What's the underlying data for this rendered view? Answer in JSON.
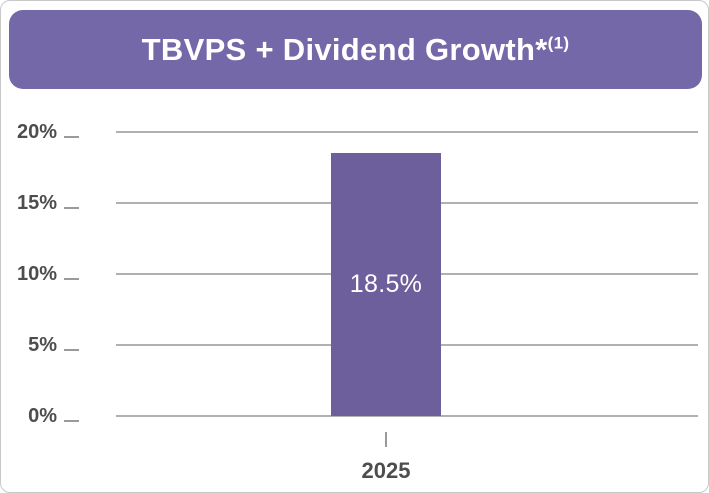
{
  "header": {
    "title": "TBVPS + Dividend Growth*",
    "footnote": "(1)"
  },
  "chart_data": {
    "type": "bar",
    "title": "TBVPS + Dividend Growth*(1)",
    "categories": [
      "2025"
    ],
    "values": [
      18.5
    ],
    "bar_labels": [
      "18.5%"
    ],
    "xlabel": "",
    "ylabel": "",
    "ylim": [
      0,
      20
    ],
    "yticks": [
      20,
      15,
      10,
      5,
      0
    ],
    "ytick_labels": [
      "20%",
      "15%",
      "10%",
      "5%",
      "0%"
    ],
    "grid": "horizontal",
    "legend": "none",
    "colors": {
      "header_background": "#7568A9",
      "bar": "#6C5F9C",
      "gridline": "#b0b0b0",
      "axis_text": "#4d4d4d"
    }
  }
}
